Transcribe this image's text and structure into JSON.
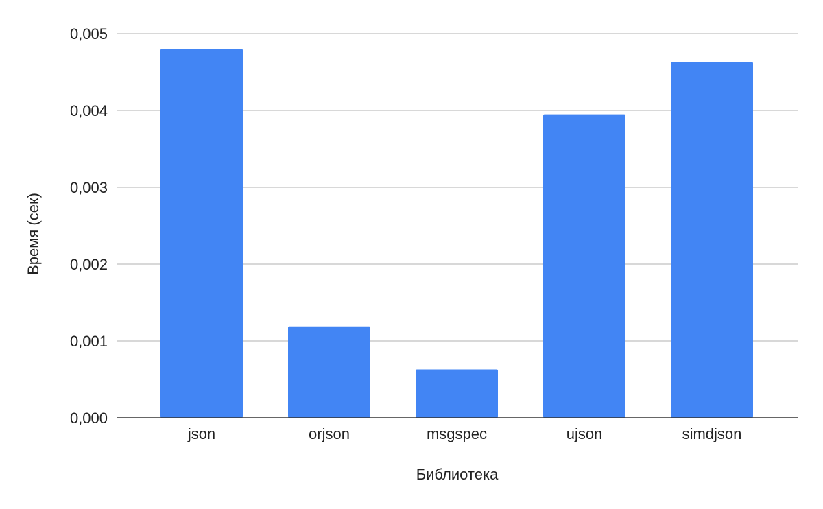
{
  "chart_data": {
    "type": "bar",
    "title": "",
    "xlabel": "Библиотека",
    "ylabel": "Время (сек)",
    "categories": [
      "json",
      "orjson",
      "msgspec",
      "ujson",
      "simdjson"
    ],
    "values": [
      0.0048,
      0.00119,
      0.00063,
      0.00395,
      0.00463
    ],
    "ylim": [
      0,
      0.005
    ],
    "yticks": [
      {
        "value": 0,
        "label": "0,000"
      },
      {
        "value": 0.001,
        "label": "0,001"
      },
      {
        "value": 0.002,
        "label": "0,002"
      },
      {
        "value": 0.003,
        "label": "0,003"
      },
      {
        "value": 0.004,
        "label": "0,004"
      },
      {
        "value": 0.005,
        "label": "0,005"
      }
    ],
    "grid": true,
    "legend": "none",
    "bar_color": "#4285f4",
    "grid_color": "#cccccc",
    "axis_color": "#333333"
  }
}
